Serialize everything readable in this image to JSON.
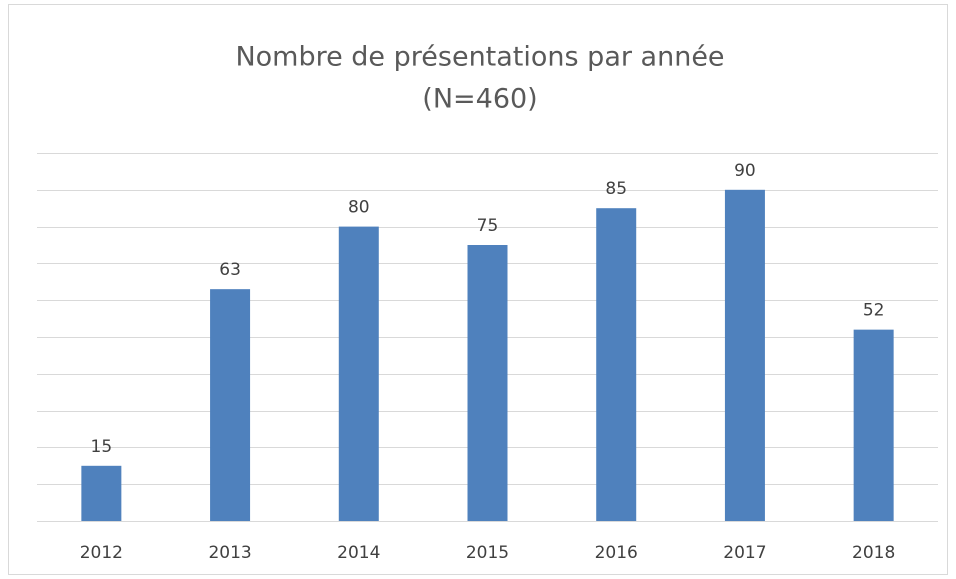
{
  "chart_data": {
    "type": "bar",
    "title": "Nombre de présentations par année",
    "subtitle": "(N=460)",
    "categories": [
      "2012",
      "2013",
      "2014",
      "2015",
      "2016",
      "2017",
      "2018"
    ],
    "values": [
      15,
      63,
      80,
      75,
      85,
      90,
      52
    ],
    "color": "#4f81bd",
    "ylim": [
      0,
      100
    ],
    "yticks": [
      0,
      10,
      20,
      30,
      40,
      50,
      60,
      70,
      80,
      90,
      100
    ],
    "grid": true
  }
}
